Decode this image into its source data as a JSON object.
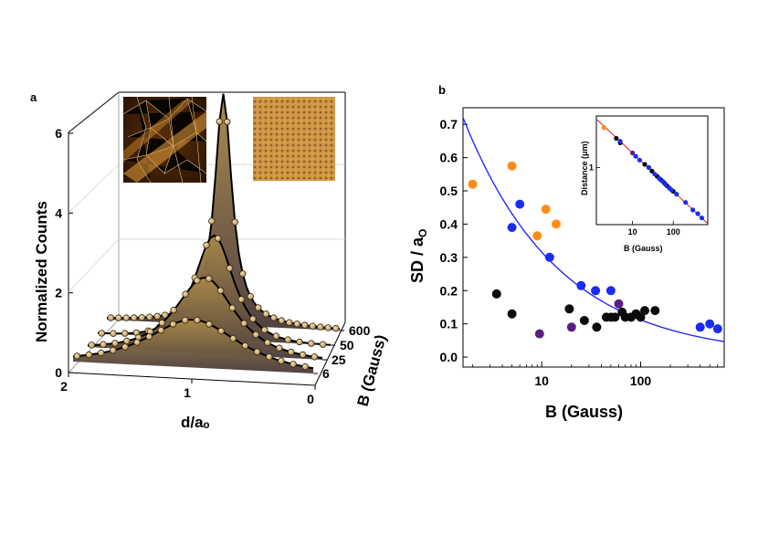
{
  "panel_a": {
    "label": "a",
    "ylabel": "Normalized Counts",
    "xlabel": "d/aₒ",
    "zlabel": "B (Gauss)",
    "y_ticks": [
      "0",
      "2",
      "4",
      "6"
    ],
    "x_ticks": [
      "2",
      "1",
      "0"
    ],
    "z_ticks": [
      "600",
      "50",
      "25",
      "6"
    ]
  },
  "panel_b": {
    "label": "b",
    "ylabel": "SD / a",
    "ylabel_sub": "O",
    "xlabel": "B (Gauss)",
    "y_ticks": [
      "0.7",
      "0.6",
      "0.5",
      "0.4",
      "0.3",
      "0.2",
      "0.1",
      "0.0"
    ],
    "x_ticks": [
      "10",
      "100"
    ],
    "inset": {
      "ylabel": "Distance (μm)",
      "xlabel": "B (Gauss)",
      "y_tick": "1",
      "x_ticks": [
        "10",
        "100"
      ]
    }
  },
  "colors": {
    "orange": "#ff8c1a",
    "blue": "#1a2cf0",
    "black": "#0a0a0a",
    "purple": "#5a1e86",
    "fit_blue": "#1a1aff",
    "fit_red": "#d81e1e",
    "a_top": "#a8884a",
    "a_bottom": "#4a3c3c"
  },
  "chart_data": [
    {
      "type": "area",
      "title": "",
      "xlabel": "d/aₒ",
      "ylabel": "Normalized Counts",
      "xlim": [
        0,
        2
      ],
      "ylim": [
        0,
        6
      ],
      "series": [
        {
          "name": "600",
          "peak_x": 1.0,
          "peak_y": 5.8,
          "width": 0.09
        },
        {
          "name": "50",
          "peak_x": 1.0,
          "peak_y": 2.6,
          "width": 0.22
        },
        {
          "name": "25",
          "peak_x": 1.0,
          "peak_y": 1.9,
          "width": 0.33
        },
        {
          "name": "6",
          "peak_x": 1.0,
          "peak_y": 1.2,
          "width": 0.5
        }
      ]
    },
    {
      "type": "scatter",
      "title": "",
      "xlabel": "B (Gauss)",
      "ylabel": "SD / aO",
      "xscale": "log",
      "xlim": [
        1.6,
        700
      ],
      "ylim": [
        -0.03,
        0.75
      ],
      "series": [
        {
          "name": "orange",
          "color": "#ff8c1a",
          "x": [
            2,
            5,
            9,
            11,
            14
          ],
          "y": [
            0.52,
            0.575,
            0.365,
            0.445,
            0.4
          ]
        },
        {
          "name": "blue",
          "color": "#1a2cf0",
          "x": [
            5,
            6,
            12,
            25,
            35,
            50,
            400,
            500,
            600
          ],
          "y": [
            0.39,
            0.46,
            0.3,
            0.215,
            0.2,
            0.2,
            0.09,
            0.1,
            0.085
          ]
        },
        {
          "name": "black",
          "color": "#0a0a0a",
          "x": [
            3.5,
            5,
            19,
            27,
            36,
            45,
            50,
            55,
            65,
            70,
            80,
            90,
            100,
            110,
            140
          ],
          "y": [
            0.19,
            0.13,
            0.145,
            0.11,
            0.09,
            0.12,
            0.12,
            0.12,
            0.135,
            0.12,
            0.12,
            0.13,
            0.12,
            0.14,
            0.14
          ]
        },
        {
          "name": "purple",
          "color": "#5a1e86",
          "x": [
            9.5,
            20,
            60
          ],
          "y": [
            0.07,
            0.09,
            0.16
          ]
        }
      ],
      "fit": {
        "type": "power",
        "coefficient": 0.89,
        "exponent": -0.45
      }
    },
    {
      "type": "scatter",
      "title": "",
      "xlabel": "B (Gauss)",
      "ylabel": "Distance (μm)",
      "xscale": "log",
      "yscale": "log",
      "xlim": [
        1.3,
        700
      ],
      "ylim": [
        0.18,
        4.7
      ],
      "series": [
        {
          "name": "orange",
          "color": "#ff8c1a",
          "x": [
            2
          ],
          "y": [
            3.3
          ]
        },
        {
          "name": "black",
          "color": "#0a0a0a",
          "x": [
            4,
            5,
            20,
            30,
            40,
            50,
            60,
            70,
            80,
            100
          ],
          "y": [
            2.4,
            2.1,
            1.1,
            0.9,
            0.77,
            0.69,
            0.63,
            0.58,
            0.54,
            0.49
          ]
        },
        {
          "name": "purple",
          "color": "#5a1e86",
          "x": [
            10,
            25
          ],
          "y": [
            1.55,
            1.0
          ]
        },
        {
          "name": "blue",
          "color": "#1a2cf0",
          "x": [
            5,
            12,
            15,
            25,
            35,
            45,
            55,
            65,
            80,
            90,
            120,
            200,
            300,
            400,
            500
          ],
          "y": [
            2.2,
            1.4,
            1.25,
            1.0,
            0.82,
            0.72,
            0.66,
            0.6,
            0.54,
            0.51,
            0.45,
            0.35,
            0.28,
            0.25,
            0.22
          ]
        }
      ],
      "fit": {
        "type": "power",
        "coefficient": 4.9,
        "exponent": -0.5,
        "color": "#d81e1e"
      }
    }
  ]
}
